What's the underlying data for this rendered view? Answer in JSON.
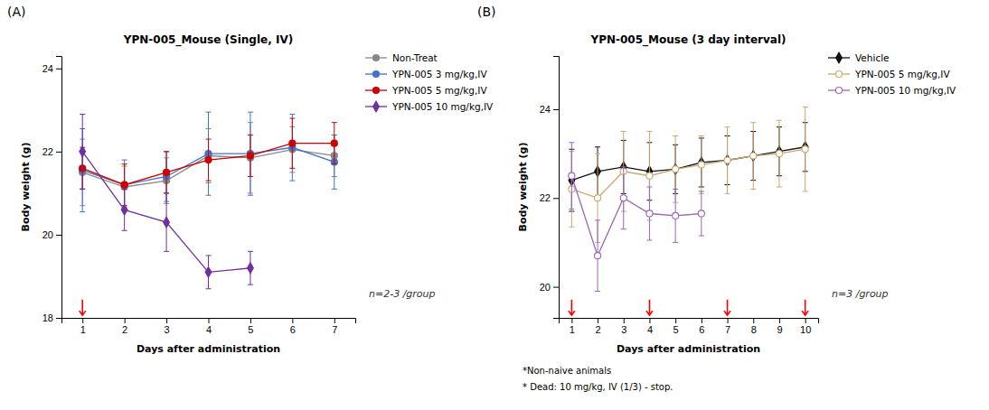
{
  "chart_data": [
    {
      "type": "line",
      "panel_label": "(A)",
      "title": "YPN-005_Mouse (Single, IV)",
      "x_label": "Days after administration",
      "y_label": "Body weight (g)",
      "xlim": [
        0.5,
        7.5
      ],
      "xticks": [
        1,
        2,
        3,
        4,
        5,
        6,
        7
      ],
      "ylim": [
        18,
        24.3
      ],
      "yticks": [
        18,
        20,
        22,
        24
      ],
      "grid": false,
      "legend": "right",
      "arrows": {
        "x": [
          1
        ],
        "color": "red"
      },
      "annotations": [
        "n=2-3 /group"
      ],
      "series": [
        {
          "name": "Non-Treat",
          "color": "#888888",
          "marker": "circle",
          "x": [
            1,
            2,
            3,
            4,
            5,
            6,
            7
          ],
          "values": [
            21.5,
            21.15,
            21.3,
            21.9,
            21.85,
            22.05,
            21.9
          ],
          "errors": [
            0.8,
            0.5,
            0.55,
            0.65,
            0.85,
            0.55,
            0.5
          ]
        },
        {
          "name": "YPN-005 3 mg/kg,IV",
          "color": "#4472C4",
          "marker": "circle",
          "x": [
            1,
            2,
            3,
            4,
            5,
            6,
            7
          ],
          "values": [
            21.55,
            21.2,
            21.4,
            21.95,
            21.95,
            22.1,
            21.75
          ],
          "errors": [
            1.0,
            0.6,
            0.6,
            1.0,
            1.0,
            0.8,
            0.65
          ]
        },
        {
          "name": "YPN-005 5 mg/kg,IV",
          "color": "#CC0000",
          "marker": "circle",
          "x": [
            1,
            2,
            3,
            4,
            5,
            6,
            7
          ],
          "values": [
            21.6,
            21.2,
            21.5,
            21.8,
            21.9,
            22.2,
            22.2
          ],
          "errors": [
            0.5,
            0.5,
            0.5,
            0.5,
            0.5,
            0.6,
            0.5
          ]
        },
        {
          "name": "YPN-005 10 mg/kg,IV",
          "color": "#7030A0",
          "marker": "diamond",
          "x": [
            1,
            2,
            3,
            4,
            5
          ],
          "values": [
            22.0,
            20.6,
            20.3,
            19.1,
            19.2
          ],
          "errors": [
            0.9,
            0.5,
            0.7,
            0.4,
            0.4
          ]
        }
      ]
    },
    {
      "type": "line",
      "panel_label": "(B)",
      "title": "YPN-005_Mouse (3 day interval)",
      "x_label": "Days after administration",
      "y_label": "Body weight (g)",
      "xlim": [
        0.5,
        10.5
      ],
      "xticks": [
        1,
        2,
        3,
        4,
        5,
        6,
        7,
        8,
        9,
        10
      ],
      "ylim": [
        19.3,
        25.2
      ],
      "yticks": [
        20,
        22,
        24
      ],
      "grid": false,
      "legend": "right",
      "arrows": {
        "x": [
          1,
          4,
          7,
          10
        ],
        "color": "red"
      },
      "annotations": [
        "n=3 /group"
      ],
      "footnotes": [
        "*Non-naive animals",
        "* Dead: 10 mg/kg, IV (1/3) - stop."
      ],
      "series": [
        {
          "name": "Vehicle",
          "color": "#111111",
          "marker": "diamond",
          "x": [
            1,
            2,
            3,
            4,
            5,
            6,
            7,
            8,
            9,
            10
          ],
          "values": [
            22.4,
            22.6,
            22.7,
            22.6,
            22.65,
            22.8,
            22.85,
            22.95,
            23.05,
            23.15
          ],
          "errors": [
            0.7,
            0.55,
            0.6,
            0.65,
            0.55,
            0.55,
            0.55,
            0.55,
            0.55,
            0.55
          ]
        },
        {
          "name": "YPN-005 5 mg/kg,IV",
          "color": "#C8A870",
          "marker": "circle-open",
          "x": [
            1,
            2,
            3,
            4,
            5,
            6,
            7,
            8,
            9,
            10
          ],
          "values": [
            22.2,
            22.0,
            22.6,
            22.5,
            22.65,
            22.75,
            22.85,
            22.95,
            23.0,
            23.1
          ],
          "errors": [
            0.85,
            1.0,
            0.9,
            1.0,
            0.75,
            0.65,
            0.75,
            0.75,
            0.75,
            0.95
          ]
        },
        {
          "name": "YPN-005 10 mg/kg,IV",
          "color": "#9966BB",
          "marker": "circle-open",
          "x": [
            1,
            2,
            3,
            4,
            5,
            6
          ],
          "values": [
            22.5,
            20.7,
            22.0,
            21.65,
            21.6,
            21.65
          ],
          "errors": [
            0.75,
            0.8,
            0.7,
            0.6,
            0.6,
            0.5
          ]
        }
      ]
    }
  ]
}
